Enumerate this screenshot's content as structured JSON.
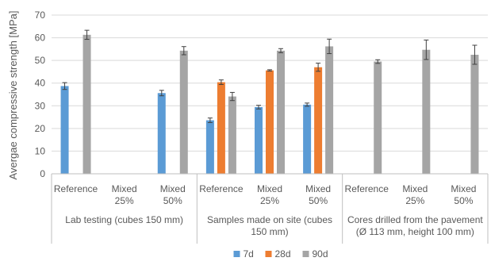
{
  "chart_data": {
    "type": "bar",
    "ylabel": "Avergae compressive strength [MPa]",
    "ylim": [
      0,
      70
    ],
    "ytick_step": 10,
    "grid": true,
    "legend_position": "bottom",
    "groups": [
      {
        "label": "Lab testing (cubes 150 mm)",
        "lines": [
          "Lab testing (cubes 150 mm)"
        ],
        "categories": [
          0,
          1,
          2
        ]
      },
      {
        "label": "Samples made on site (cubes 150 mm)",
        "lines": [
          "Samples made on site (cubes",
          "150 mm)"
        ],
        "categories": [
          3,
          4,
          5
        ]
      },
      {
        "label": "Cores drilled from the pavement (Ø 113 mm, height 100 mm)",
        "lines": [
          "Cores drilled from the pavement",
          "(Ø 113 mm, height 100 mm)"
        ],
        "categories": [
          6,
          7,
          8
        ]
      }
    ],
    "categories": [
      {
        "lines": [
          "Reference"
        ]
      },
      {
        "lines": [
          "Mixed",
          "25%"
        ]
      },
      {
        "lines": [
          "Mixed",
          "50%"
        ]
      },
      {
        "lines": [
          "Reference"
        ]
      },
      {
        "lines": [
          "Mixed",
          "25%"
        ]
      },
      {
        "lines": [
          "Mixed",
          "50%"
        ]
      },
      {
        "lines": [
          "Reference"
        ]
      },
      {
        "lines": [
          "Mixed",
          "25%"
        ]
      },
      {
        "lines": [
          "Mixed",
          "50%"
        ]
      }
    ],
    "series": [
      {
        "name": "7d",
        "color": "#5B9BD5",
        "values": [
          38.7,
          null,
          35.6,
          23.6,
          29.4,
          30.5,
          null,
          null,
          null
        ],
        "errors": [
          1.5,
          null,
          1.2,
          1.0,
          0.8,
          0.7,
          null,
          null,
          null
        ]
      },
      {
        "name": "28d",
        "color": "#ED7D31",
        "values": [
          null,
          null,
          null,
          40.4,
          45.6,
          47.0,
          null,
          null,
          null
        ],
        "errors": [
          null,
          null,
          null,
          1.0,
          0.3,
          1.8,
          null,
          null,
          null
        ]
      },
      {
        "name": "90d",
        "color": "#A5A5A5",
        "values": [
          61.3,
          null,
          54.3,
          34.1,
          54.3,
          56.2,
          49.5,
          54.7,
          52.5
        ],
        "errors": [
          2.0,
          null,
          1.8,
          1.8,
          0.9,
          3.2,
          0.8,
          4.3,
          4.2
        ]
      }
    ]
  }
}
